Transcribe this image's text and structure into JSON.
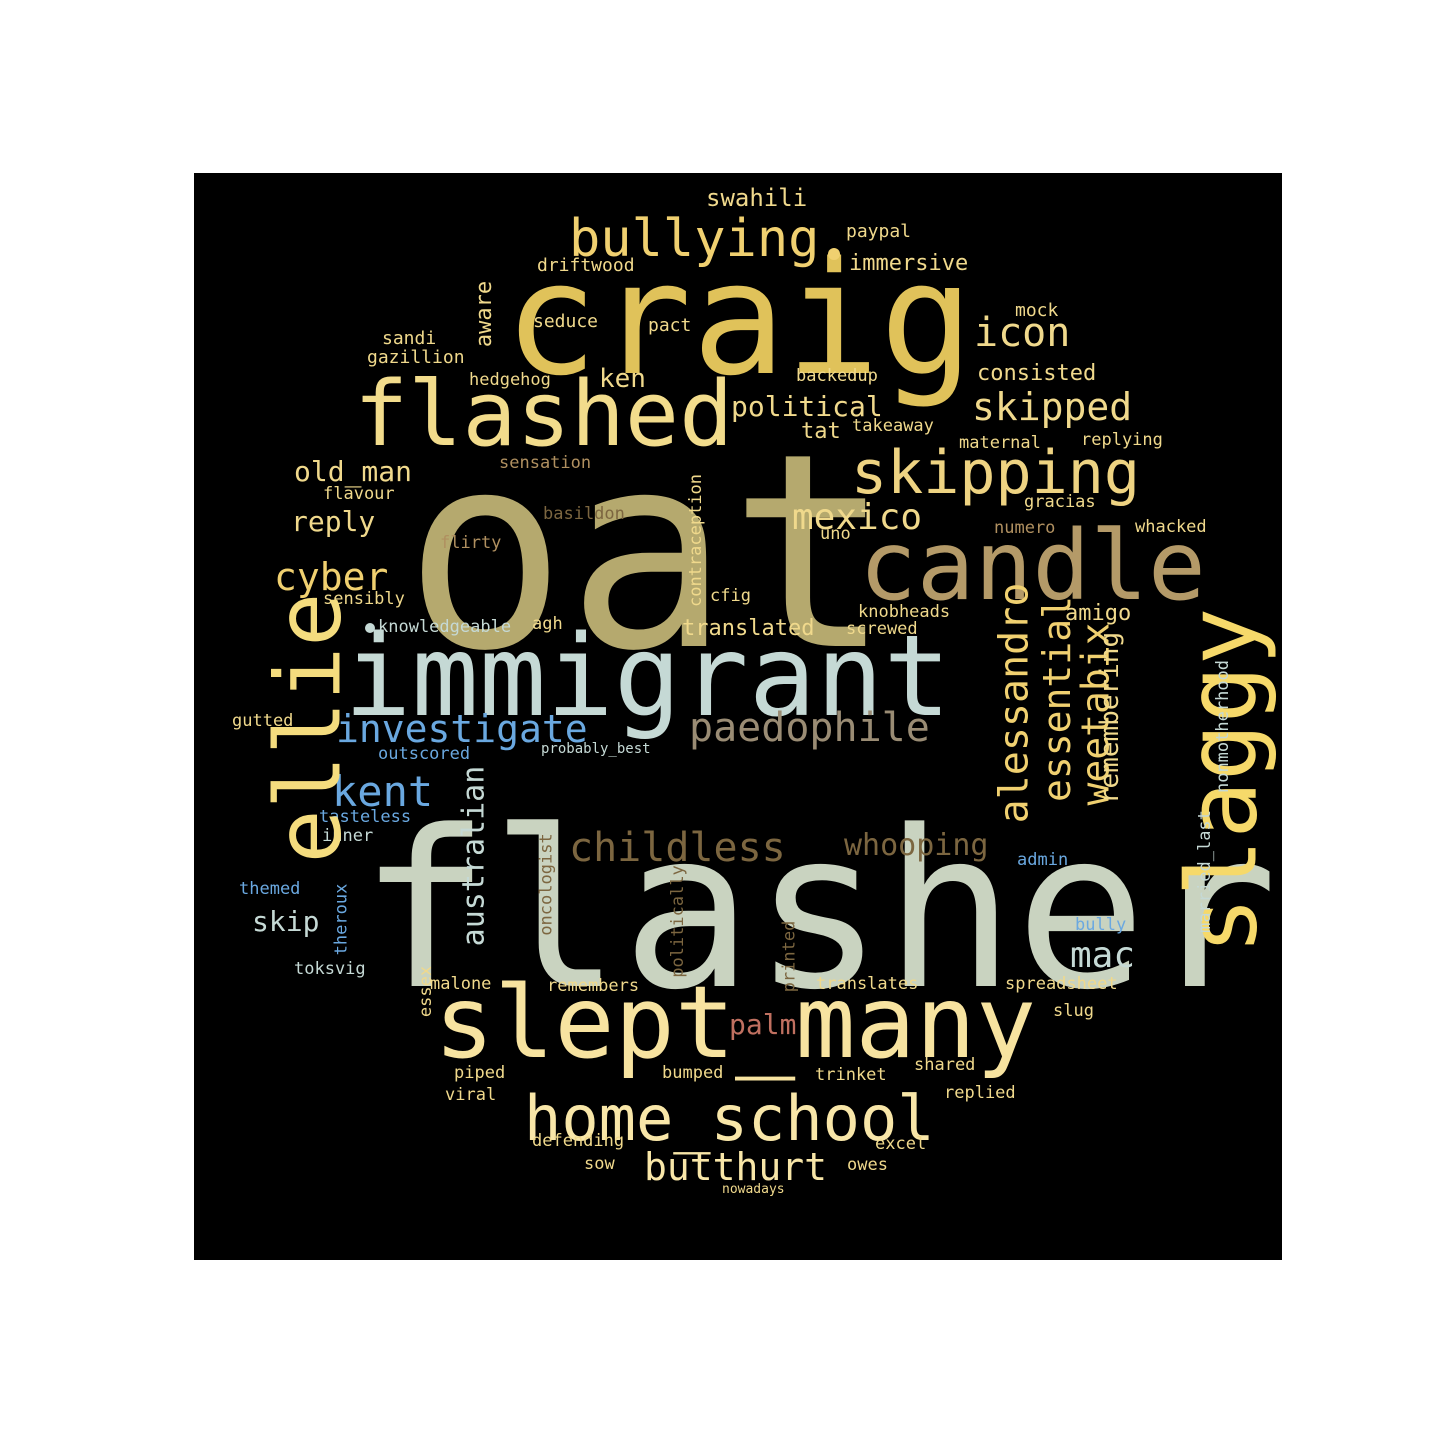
{
  "colors": {
    "background": "#000000",
    "page": "#ffffff"
  },
  "words": [
    {
      "id": "oat",
      "text": "oat",
      "color": "#b5a96e"
    },
    {
      "id": "flasher",
      "text": "flasher",
      "color": "#c9d3c0"
    },
    {
      "id": "craig",
      "text": "craig",
      "color": "#e0c25a"
    },
    {
      "id": "immigrant",
      "text": "immigrant",
      "color": "#c5d9d5"
    },
    {
      "id": "slept_many",
      "text": "slept_many",
      "color": "#f7e3a0"
    },
    {
      "id": "candle",
      "text": "candle",
      "color": "#b49a68"
    },
    {
      "id": "flashed",
      "text": "flashed",
      "color": "#f2dc8c"
    },
    {
      "id": "ellie",
      "text": "ellie",
      "color": "#f4dc7e"
    },
    {
      "id": "slaggy",
      "text": "slaggy",
      "color": "#f6d96a"
    },
    {
      "id": "home_school",
      "text": "home_school",
      "color": "#f8e6a8"
    },
    {
      "id": "skipping",
      "text": "skipping",
      "color": "#eed382"
    },
    {
      "id": "bullying",
      "text": "bullying",
      "color": "#f0d070"
    },
    {
      "id": "paedophile",
      "text": "paedophile",
      "color": "#9a8c74"
    },
    {
      "id": "childless",
      "text": "childless",
      "color": "#7c6640"
    },
    {
      "id": "butthurt",
      "text": "butthurt",
      "color": "#f8e6a8"
    },
    {
      "id": "investigate",
      "text": "investigate",
      "color": "#6aa8e0"
    },
    {
      "id": "kent",
      "text": "kent",
      "color": "#6aa8e0"
    },
    {
      "id": "icon",
      "text": "icon",
      "color": "#f0d98c"
    },
    {
      "id": "skipped",
      "text": "skipped",
      "color": "#f0d98c"
    },
    {
      "id": "mexico",
      "text": "mexico",
      "color": "#f0d98c"
    },
    {
      "id": "cyber",
      "text": "cyber",
      "color": "#f0d070"
    },
    {
      "id": "alessandro",
      "text": "alessandro",
      "color": "#f0d070"
    },
    {
      "id": "essential",
      "text": "essential",
      "color": "#f0d070"
    },
    {
      "id": "weetabix",
      "text": "weetabix",
      "color": "#f0d070"
    },
    {
      "id": "remembering",
      "text": "remembering",
      "color": "#f0d98c"
    },
    {
      "id": "whooping",
      "text": "whooping",
      "color": "#7c6640"
    },
    {
      "id": "australian",
      "text": "australian",
      "color": "#c5d9d5"
    },
    {
      "id": "mac",
      "text": "mac",
      "color": "#c5d9d5"
    },
    {
      "id": "palm",
      "text": "palm",
      "color": "#c07060"
    },
    {
      "id": "political",
      "text": "political",
      "color": "#f0d98c"
    },
    {
      "id": "old_man",
      "text": "old_man",
      "color": "#f0d98c"
    },
    {
      "id": "reply",
      "text": "reply",
      "color": "#f0d98c"
    },
    {
      "id": "skip",
      "text": "skip",
      "color": "#c5d9d5"
    },
    {
      "id": "swahili",
      "text": "swahili",
      "color": "#f0d98c"
    },
    {
      "id": "ken",
      "text": "ken",
      "color": "#f0d98c"
    },
    {
      "id": "aware",
      "text": "aware",
      "color": "#f0d98c"
    },
    {
      "id": "consisted",
      "text": "consisted",
      "color": "#f0d98c"
    },
    {
      "id": "translated",
      "text": "translated",
      "color": "#f0d98c"
    },
    {
      "id": "immersive",
      "text": "immersive",
      "color": "#f0d98c"
    },
    {
      "id": "amigo",
      "text": "amigo",
      "color": "#f0d98c"
    },
    {
      "id": "tat",
      "text": "tat",
      "color": "#f0d98c"
    },
    {
      "id": "paypal",
      "text": "paypal",
      "color": "#f0d98c"
    },
    {
      "id": "driftwood",
      "text": "driftwood",
      "color": "#f0d98c"
    },
    {
      "id": "seduce",
      "text": "seduce",
      "color": "#f0d98c"
    },
    {
      "id": "pact",
      "text": "pact",
      "color": "#f0d98c"
    },
    {
      "id": "mock",
      "text": "mock",
      "color": "#f0d98c"
    },
    {
      "id": "sandi",
      "text": "sandi",
      "color": "#f0d98c"
    },
    {
      "id": "gazillion",
      "text": "gazillion",
      "color": "#f0d98c"
    },
    {
      "id": "hedgehog",
      "text": "hedgehog",
      "color": "#f0d98c"
    },
    {
      "id": "backedup",
      "text": "backedup",
      "color": "#f0d98c"
    },
    {
      "id": "takeaway",
      "text": "takeaway",
      "color": "#f0d98c"
    },
    {
      "id": "maternal",
      "text": "maternal",
      "color": "#f0d98c"
    },
    {
      "id": "replying",
      "text": "replying",
      "color": "#f0d98c"
    },
    {
      "id": "sensation",
      "text": "sensation",
      "color": "#b09060"
    },
    {
      "id": "flavour",
      "text": "flavour",
      "color": "#f0d98c"
    },
    {
      "id": "contraception",
      "text": "contraception",
      "color": "#f0d98c"
    },
    {
      "id": "gracias",
      "text": "gracias",
      "color": "#f0d98c"
    },
    {
      "id": "basildon",
      "text": "basildon",
      "color": "#7c6640"
    },
    {
      "id": "numero",
      "text": "numero",
      "color": "#b09060"
    },
    {
      "id": "whacked",
      "text": "whacked",
      "color": "#f0d98c"
    },
    {
      "id": "flirty",
      "text": "flirty",
      "color": "#b09060"
    },
    {
      "id": "uno",
      "text": "uno",
      "color": "#f0d98c"
    },
    {
      "id": "sensibly",
      "text": "sensibly",
      "color": "#f0d98c"
    },
    {
      "id": "cfig",
      "text": "cfig",
      "color": "#f0d98c"
    },
    {
      "id": "knobheads",
      "text": "knobheads",
      "color": "#f0d98c"
    },
    {
      "id": "knowledgeable",
      "text": "knowledgeable",
      "color": "#c5d9d5"
    },
    {
      "id": "agh",
      "text": "agh",
      "color": "#f0d98c"
    },
    {
      "id": "screwed",
      "text": "screwed",
      "color": "#f0d98c"
    },
    {
      "id": "nonmotherhood",
      "text": "nonmotherhood",
      "color": "#c5d9d5"
    },
    {
      "id": "gutted",
      "text": "gutted",
      "color": "#f0d98c"
    },
    {
      "id": "outscored",
      "text": "outscored",
      "color": "#6aa8e0"
    },
    {
      "id": "probably_best",
      "text": "probably_best",
      "color": "#c5d9d5"
    },
    {
      "id": "married_last",
      "text": "married_last",
      "color": "#c5d9d5"
    },
    {
      "id": "tasteless",
      "text": "tasteless",
      "color": "#6aa8e0"
    },
    {
      "id": "inner",
      "text": "inner",
      "color": "#c5d9d5"
    },
    {
      "id": "oncologist",
      "text": "oncologist",
      "color": "#7c6640"
    },
    {
      "id": "politically",
      "text": "politically",
      "color": "#7c6640"
    },
    {
      "id": "admin",
      "text": "admin",
      "color": "#6aa8e0"
    },
    {
      "id": "themed",
      "text": "themed",
      "color": "#6aa8e0"
    },
    {
      "id": "theroux",
      "text": "theroux",
      "color": "#6aa8e0"
    },
    {
      "id": "printed",
      "text": "printed",
      "color": "#7c6640"
    },
    {
      "id": "bully",
      "text": "bully",
      "color": "#6aa8e0"
    },
    {
      "id": "toksvig",
      "text": "toksvig",
      "color": "#c5d9d5"
    },
    {
      "id": "essex",
      "text": "essex",
      "color": "#f0d98c"
    },
    {
      "id": "malone",
      "text": "malone",
      "color": "#f0d98c"
    },
    {
      "id": "remembers",
      "text": "remembers",
      "color": "#f0d98c"
    },
    {
      "id": "translates",
      "text": "translates",
      "color": "#f0d98c"
    },
    {
      "id": "spreadsheet",
      "text": "spreadsheet",
      "color": "#f0d98c"
    },
    {
      "id": "slug",
      "text": "slug",
      "color": "#f0d98c"
    },
    {
      "id": "shared",
      "text": "shared",
      "color": "#f0d98c"
    },
    {
      "id": "piped",
      "text": "piped",
      "color": "#f0d98c"
    },
    {
      "id": "bumped",
      "text": "bumped",
      "color": "#f0d98c"
    },
    {
      "id": "trinket",
      "text": "trinket",
      "color": "#f0d98c"
    },
    {
      "id": "replied",
      "text": "replied",
      "color": "#f0d98c"
    },
    {
      "id": "viral",
      "text": "viral",
      "color": "#f0d98c"
    },
    {
      "id": "defending",
      "text": "defending",
      "color": "#f0d98c"
    },
    {
      "id": "excel",
      "text": "excel",
      "color": "#f0d98c"
    },
    {
      "id": "sow",
      "text": "sow",
      "color": "#f0d98c"
    },
    {
      "id": "owes",
      "text": "owes",
      "color": "#f0d98c"
    },
    {
      "id": "nowadays",
      "text": "nowadays",
      "color": "#f0d98c"
    }
  ]
}
